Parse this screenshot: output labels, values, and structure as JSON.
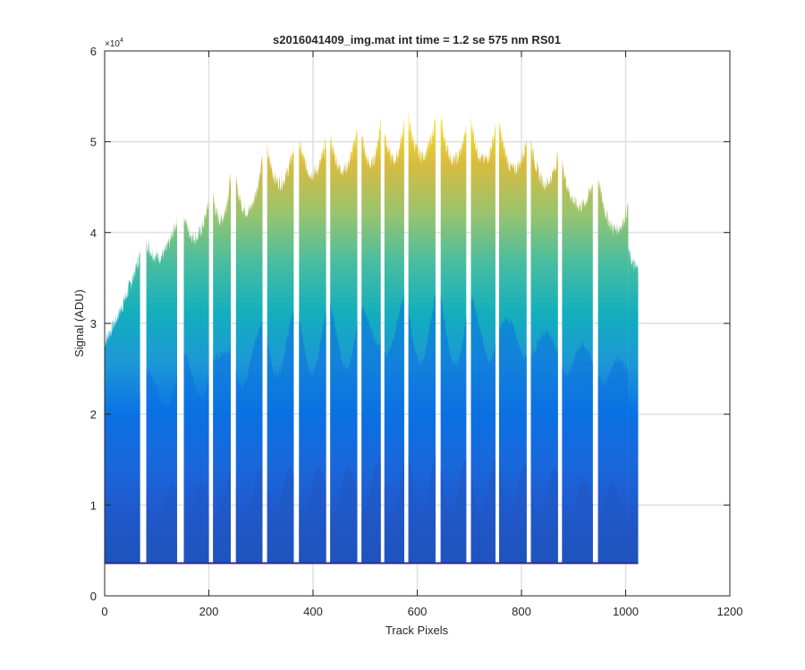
{
  "chart_data": {
    "type": "area",
    "title": "s2016041409_img.mat int time = 1.2 se  575 nm RS01",
    "xlabel": "Track Pixels",
    "ylabel": "Signal (ADU)",
    "xlim": [
      0,
      1200
    ],
    "ylim": [
      0,
      60000
    ],
    "x_ticks": [
      0,
      200,
      400,
      600,
      800,
      1000,
      1200
    ],
    "x_tick_labels": [
      "0",
      "200",
      "400",
      "600",
      "800",
      "1000",
      "1200"
    ],
    "y_ticks": [
      0,
      10000,
      20000,
      30000,
      40000,
      50000,
      60000
    ],
    "y_tick_labels": [
      "0",
      "1",
      "2",
      "3",
      "4",
      "5",
      "6"
    ],
    "y_exponent_label": "×10",
    "y_exponent_power": "4",
    "grid": true,
    "colormap": [
      "#352a87",
      "#3a3fb5",
      "#2a5fd6",
      "#0b72e6",
      "#1c97d6",
      "#13aebd",
      "#47bda1",
      "#98c46e",
      "#d8bb40",
      "#f9e42a"
    ],
    "baseline": 3600,
    "x_extent": [
      0,
      1024
    ],
    "tracks": [
      {
        "x_start": 0,
        "x_end": 68,
        "edge_start": 28000,
        "mid": 32000,
        "edge_end": 37500
      },
      {
        "x_start": 80,
        "x_end": 139,
        "edge_start": 39000,
        "mid": 37500,
        "edge_end": 41500
      },
      {
        "x_start": 152,
        "x_end": 200,
        "edge_start": 42000,
        "mid": 39500,
        "edge_end": 43500
      },
      {
        "x_start": 208,
        "x_end": 242,
        "edge_start": 44000,
        "mid": 41500,
        "edge_end": 46500
      },
      {
        "x_start": 252,
        "x_end": 303,
        "edge_start": 45500,
        "mid": 42500,
        "edge_end": 48500
      },
      {
        "x_start": 312,
        "x_end": 363,
        "edge_start": 49000,
        "mid": 45500,
        "edge_end": 49500
      },
      {
        "x_start": 373,
        "x_end": 425,
        "edge_start": 50000,
        "mid": 46500,
        "edge_end": 50000
      },
      {
        "x_start": 433,
        "x_end": 485,
        "edge_start": 50500,
        "mid": 47000,
        "edge_end": 51500
      },
      {
        "x_start": 493,
        "x_end": 530,
        "edge_start": 51000,
        "mid": 47500,
        "edge_end": 52500
      },
      {
        "x_start": 537,
        "x_end": 575,
        "edge_start": 51500,
        "mid": 48000,
        "edge_end": 52500
      },
      {
        "x_start": 583,
        "x_end": 635,
        "edge_start": 52500,
        "mid": 48500,
        "edge_end": 52500
      },
      {
        "x_start": 645,
        "x_end": 694,
        "edge_start": 52500,
        "mid": 48000,
        "edge_end": 51500
      },
      {
        "x_start": 703,
        "x_end": 750,
        "edge_start": 52500,
        "mid": 48000,
        "edge_end": 51500
      },
      {
        "x_start": 757,
        "x_end": 810,
        "edge_start": 52000,
        "mid": 47000,
        "edge_end": 50500
      },
      {
        "x_start": 818,
        "x_end": 870,
        "edge_start": 50000,
        "mid": 45500,
        "edge_end": 48500
      },
      {
        "x_start": 878,
        "x_end": 937,
        "edge_start": 47500,
        "mid": 43000,
        "edge_end": 45500
      },
      {
        "x_start": 947,
        "x_end": 1005,
        "edge_start": 46000,
        "mid": 40500,
        "edge_end": 43000
      },
      {
        "x_start": 1005,
        "x_end": 1024,
        "edge_start": 38000,
        "mid": 36500,
        "edge_end": 36000
      }
    ]
  }
}
